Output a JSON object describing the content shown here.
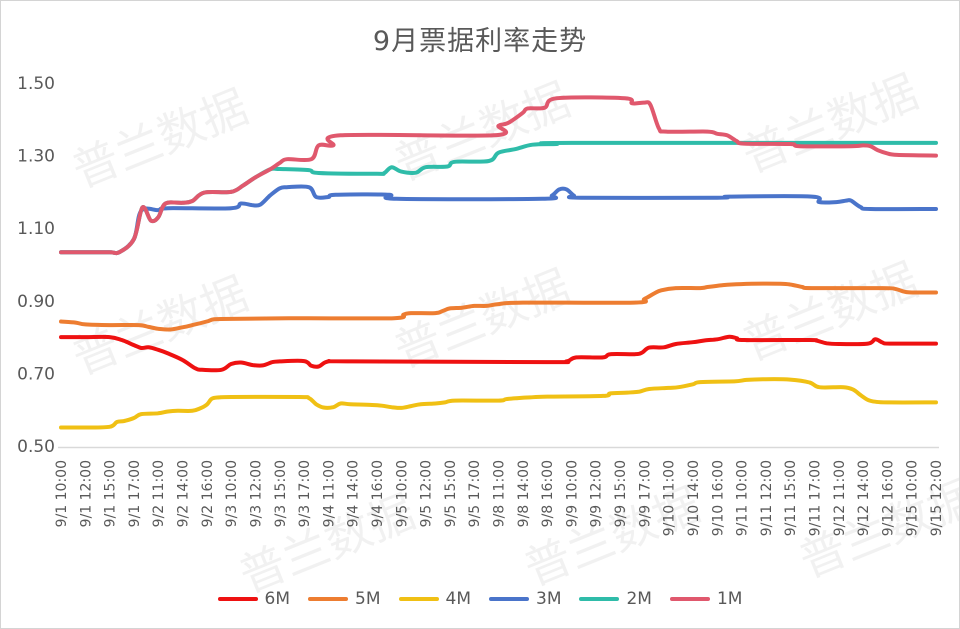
{
  "title": "9月票据利率走势",
  "watermark_text": "普兰数据",
  "colors": {
    "title_text": "#595959",
    "axis_text": "#595959",
    "axis_line": "#d9d9d9",
    "frame_border": "#d4d4d4",
    "background": "#ffffff"
  },
  "chart_data": {
    "type": "line",
    "title": "9月票据利率走势",
    "xlabel": "",
    "ylabel": "",
    "ylim": [
      0.5,
      1.5
    ],
    "y_ticks": [
      0.5,
      0.7,
      0.9,
      1.1,
      1.3,
      1.5
    ],
    "grid": false,
    "legend_position": "bottom",
    "x_labels": [
      "9/1 10:00",
      "9/1 12:00",
      "9/1 15:00",
      "9/1 17:00",
      "9/2 11:00",
      "9/2 14:00",
      "9/2 16:00",
      "9/3 10:00",
      "9/3 12:00",
      "9/3 15:00",
      "9/3 17:00",
      "9/4 11:00",
      "9/4 14:00",
      "9/4 16:00",
      "9/5 10:00",
      "9/5 12:00",
      "9/5 15:00",
      "9/5 17:00",
      "9/8 11:00",
      "9/8 14:00",
      "9/8 16:00",
      "9/9 10:00",
      "9/9 12:00",
      "9/9 15:00",
      "9/9 17:00",
      "9/10 11:00",
      "9/10 14:00",
      "9/10 16:00",
      "9/11 10:00",
      "9/11 12:00",
      "9/11 15:00",
      "9/11 17:00",
      "9/12 11:00",
      "9/12 14:00",
      "9/12 16:00",
      "9/15 10:00",
      "9/15 12:00"
    ],
    "series": [
      {
        "name": "6M",
        "color": "#ee1111",
        "points": [
          [
            0,
            0.8
          ],
          [
            1,
            0.8
          ],
          [
            2,
            0.8
          ],
          [
            2.5,
            0.792
          ],
          [
            3,
            0.778
          ],
          [
            3.3,
            0.77
          ],
          [
            3.6,
            0.772
          ],
          [
            4,
            0.765
          ],
          [
            4.4,
            0.755
          ],
          [
            5,
            0.737
          ],
          [
            5.5,
            0.715
          ],
          [
            5.8,
            0.71
          ],
          [
            6.6,
            0.71
          ],
          [
            7,
            0.726
          ],
          [
            7.4,
            0.73
          ],
          [
            7.9,
            0.723
          ],
          [
            8.3,
            0.722
          ],
          [
            8.7,
            0.731
          ],
          [
            9,
            0.733
          ],
          [
            10,
            0.734
          ],
          [
            10.3,
            0.721
          ],
          [
            10.6,
            0.719
          ],
          [
            11,
            0.733
          ],
          [
            12,
            0.733
          ],
          [
            20,
            0.731
          ],
          [
            20.8,
            0.733
          ],
          [
            21.2,
            0.744
          ],
          [
            22.3,
            0.744
          ],
          [
            22.6,
            0.753
          ],
          [
            23.6,
            0.753
          ],
          [
            23.9,
            0.757
          ],
          [
            24.2,
            0.771
          ],
          [
            24.8,
            0.772
          ],
          [
            25.3,
            0.781
          ],
          [
            26,
            0.786
          ],
          [
            26.5,
            0.791
          ],
          [
            27,
            0.794
          ],
          [
            27.5,
            0.801
          ],
          [
            27.8,
            0.797
          ],
          [
            28.1,
            0.792
          ],
          [
            30.8,
            0.792
          ],
          [
            31.1,
            0.79
          ],
          [
            31.5,
            0.783
          ],
          [
            32,
            0.781
          ],
          [
            33.2,
            0.782
          ],
          [
            33.5,
            0.794
          ],
          [
            33.8,
            0.785
          ],
          [
            34.1,
            0.782
          ],
          [
            36,
            0.782
          ]
        ]
      },
      {
        "name": "5M",
        "color": "#ed7d31",
        "points": [
          [
            0,
            0.843
          ],
          [
            0.6,
            0.84
          ],
          [
            1,
            0.835
          ],
          [
            2,
            0.833
          ],
          [
            3.2,
            0.833
          ],
          [
            3.6,
            0.828
          ],
          [
            4,
            0.823
          ],
          [
            4.5,
            0.821
          ],
          [
            5,
            0.827
          ],
          [
            5.4,
            0.833
          ],
          [
            6,
            0.843
          ],
          [
            6.3,
            0.849
          ],
          [
            7,
            0.85
          ],
          [
            10,
            0.852
          ],
          [
            13.7,
            0.852
          ],
          [
            14.1,
            0.862
          ],
          [
            14.4,
            0.866
          ],
          [
            15.4,
            0.866
          ],
          [
            15.7,
            0.872
          ],
          [
            16,
            0.879
          ],
          [
            16.5,
            0.881
          ],
          [
            17,
            0.886
          ],
          [
            17.5,
            0.886
          ],
          [
            18,
            0.891
          ],
          [
            19,
            0.895
          ],
          [
            23.6,
            0.895
          ],
          [
            24,
            0.905
          ],
          [
            24.4,
            0.92
          ],
          [
            24.7,
            0.929
          ],
          [
            25.3,
            0.935
          ],
          [
            26.3,
            0.935
          ],
          [
            26.6,
            0.938
          ],
          [
            27.2,
            0.943
          ],
          [
            27.6,
            0.945
          ],
          [
            28.4,
            0.947
          ],
          [
            29.6,
            0.947
          ],
          [
            30,
            0.945
          ],
          [
            30.5,
            0.938
          ],
          [
            30.9,
            0.935
          ],
          [
            33.8,
            0.935
          ],
          [
            34.3,
            0.933
          ],
          [
            34.7,
            0.925
          ],
          [
            35,
            0.923
          ],
          [
            36,
            0.923
          ]
        ]
      },
      {
        "name": "4M",
        "color": "#f0c014",
        "points": [
          [
            0,
            0.551
          ],
          [
            1,
            0.551
          ],
          [
            2,
            0.553
          ],
          [
            2.3,
            0.566
          ],
          [
            2.6,
            0.569
          ],
          [
            3,
            0.577
          ],
          [
            3.3,
            0.588
          ],
          [
            4,
            0.59
          ],
          [
            4.4,
            0.595
          ],
          [
            4.8,
            0.597
          ],
          [
            5.4,
            0.597
          ],
          [
            5.7,
            0.603
          ],
          [
            6,
            0.614
          ],
          [
            6.2,
            0.63
          ],
          [
            6.5,
            0.634
          ],
          [
            7,
            0.635
          ],
          [
            9.8,
            0.635
          ],
          [
            10.2,
            0.632
          ],
          [
            10.5,
            0.615
          ],
          [
            10.8,
            0.606
          ],
          [
            11.2,
            0.607
          ],
          [
            11.5,
            0.617
          ],
          [
            11.9,
            0.615
          ],
          [
            12.8,
            0.613
          ],
          [
            13.2,
            0.611
          ],
          [
            13.6,
            0.607
          ],
          [
            14,
            0.605
          ],
          [
            14.4,
            0.61
          ],
          [
            14.8,
            0.615
          ],
          [
            15.4,
            0.617
          ],
          [
            15.8,
            0.62
          ],
          [
            16.2,
            0.625
          ],
          [
            18,
            0.625
          ],
          [
            18.3,
            0.629
          ],
          [
            18.8,
            0.632
          ],
          [
            19.3,
            0.634
          ],
          [
            20,
            0.636
          ],
          [
            22.3,
            0.638
          ],
          [
            22.6,
            0.645
          ],
          [
            23.3,
            0.647
          ],
          [
            23.8,
            0.65
          ],
          [
            24.2,
            0.657
          ],
          [
            25,
            0.66
          ],
          [
            25.4,
            0.662
          ],
          [
            26,
            0.67
          ],
          [
            26.3,
            0.676
          ],
          [
            27.7,
            0.678
          ],
          [
            28.2,
            0.682
          ],
          [
            29,
            0.684
          ],
          [
            30,
            0.683
          ],
          [
            30.8,
            0.675
          ],
          [
            31.2,
            0.662
          ],
          [
            32.2,
            0.662
          ],
          [
            32.6,
            0.655
          ],
          [
            32.9,
            0.64
          ],
          [
            33.2,
            0.627
          ],
          [
            33.5,
            0.622
          ],
          [
            34,
            0.62
          ],
          [
            36,
            0.62
          ]
        ]
      },
      {
        "name": "3M",
        "color": "#4a74ca",
        "points": [
          [
            0,
            1.034
          ],
          [
            1,
            1.034
          ],
          [
            2,
            1.034
          ],
          [
            2.4,
            1.034
          ],
          [
            3,
            1.07
          ],
          [
            3.3,
            1.148
          ],
          [
            4,
            1.15
          ],
          [
            4.4,
            1.155
          ],
          [
            7,
            1.155
          ],
          [
            7.4,
            1.168
          ],
          [
            7.9,
            1.163
          ],
          [
            8.2,
            1.165
          ],
          [
            8.6,
            1.19
          ],
          [
            9,
            1.21
          ],
          [
            9.3,
            1.213
          ],
          [
            10.2,
            1.213
          ],
          [
            10.5,
            1.186
          ],
          [
            11,
            1.186
          ],
          [
            11.3,
            1.192
          ],
          [
            13.5,
            1.192
          ],
          [
            13.8,
            1.181
          ],
          [
            19.8,
            1.181
          ],
          [
            20.2,
            1.19
          ],
          [
            20.5,
            1.207
          ],
          [
            20.8,
            1.207
          ],
          [
            21.1,
            1.19
          ],
          [
            21.4,
            1.184
          ],
          [
            27,
            1.184
          ],
          [
            27.5,
            1.187
          ],
          [
            30.9,
            1.187
          ],
          [
            31.2,
            1.172
          ],
          [
            31.9,
            1.172
          ],
          [
            32.3,
            1.176
          ],
          [
            32.5,
            1.176
          ],
          [
            32.9,
            1.158
          ],
          [
            33.3,
            1.153
          ],
          [
            36,
            1.153
          ]
        ]
      },
      {
        "name": "2M",
        "color": "#2fbca9",
        "points": [
          [
            0,
            1.034
          ],
          [
            1,
            1.034
          ],
          [
            2,
            1.034
          ],
          [
            2.4,
            1.034
          ],
          [
            3,
            1.07
          ],
          [
            3.35,
            1.157
          ],
          [
            3.7,
            1.121
          ],
          [
            4,
            1.13
          ],
          [
            4.3,
            1.168
          ],
          [
            5,
            1.17
          ],
          [
            5.4,
            1.175
          ],
          [
            5.9,
            1.198
          ],
          [
            7,
            1.2
          ],
          [
            7.5,
            1.218
          ],
          [
            8,
            1.24
          ],
          [
            8.6,
            1.262
          ],
          [
            9,
            1.263
          ],
          [
            10.2,
            1.26
          ],
          [
            10.6,
            1.252
          ],
          [
            13,
            1.25
          ],
          [
            13.3,
            1.252
          ],
          [
            13.6,
            1.268
          ],
          [
            14,
            1.256
          ],
          [
            14.6,
            1.253
          ],
          [
            15,
            1.268
          ],
          [
            15.9,
            1.27
          ],
          [
            16.2,
            1.283
          ],
          [
            17.6,
            1.285
          ],
          [
            18,
            1.308
          ],
          [
            18.7,
            1.318
          ],
          [
            19.4,
            1.33
          ],
          [
            20.4,
            1.332
          ],
          [
            21,
            1.335
          ],
          [
            36,
            1.335
          ]
        ]
      },
      {
        "name": "1M",
        "color": "#e0586d",
        "points": [
          [
            0,
            1.034
          ],
          [
            1,
            1.034
          ],
          [
            2,
            1.034
          ],
          [
            2.4,
            1.034
          ],
          [
            3,
            1.07
          ],
          [
            3.35,
            1.157
          ],
          [
            3.7,
            1.121
          ],
          [
            4,
            1.13
          ],
          [
            4.3,
            1.168
          ],
          [
            5,
            1.17
          ],
          [
            5.4,
            1.175
          ],
          [
            5.9,
            1.198
          ],
          [
            7,
            1.2
          ],
          [
            7.5,
            1.218
          ],
          [
            8,
            1.24
          ],
          [
            8.6,
            1.262
          ],
          [
            9,
            1.28
          ],
          [
            9.3,
            1.29
          ],
          [
            10.3,
            1.29
          ],
          [
            10.6,
            1.328
          ],
          [
            11.2,
            1.328
          ],
          [
            11.5,
            1.356
          ],
          [
            17.8,
            1.356
          ],
          [
            18,
            1.382
          ],
          [
            18.4,
            1.39
          ],
          [
            19,
            1.418
          ],
          [
            19.2,
            1.43
          ],
          [
            19.9,
            1.432
          ],
          [
            20.4,
            1.458
          ],
          [
            23.2,
            1.458
          ],
          [
            23.5,
            1.444
          ],
          [
            24,
            1.446
          ],
          [
            24.25,
            1.44
          ],
          [
            24.6,
            1.375
          ],
          [
            24.9,
            1.366
          ],
          [
            26.6,
            1.366
          ],
          [
            27,
            1.36
          ],
          [
            27.4,
            1.356
          ],
          [
            27.8,
            1.34
          ],
          [
            28.1,
            1.333
          ],
          [
            30,
            1.332
          ],
          [
            30.4,
            1.326
          ],
          [
            32.5,
            1.326
          ],
          [
            33,
            1.328
          ],
          [
            33.3,
            1.326
          ],
          [
            33.6,
            1.315
          ],
          [
            34,
            1.306
          ],
          [
            34.4,
            1.302
          ],
          [
            36,
            1.3
          ]
        ]
      }
    ]
  }
}
